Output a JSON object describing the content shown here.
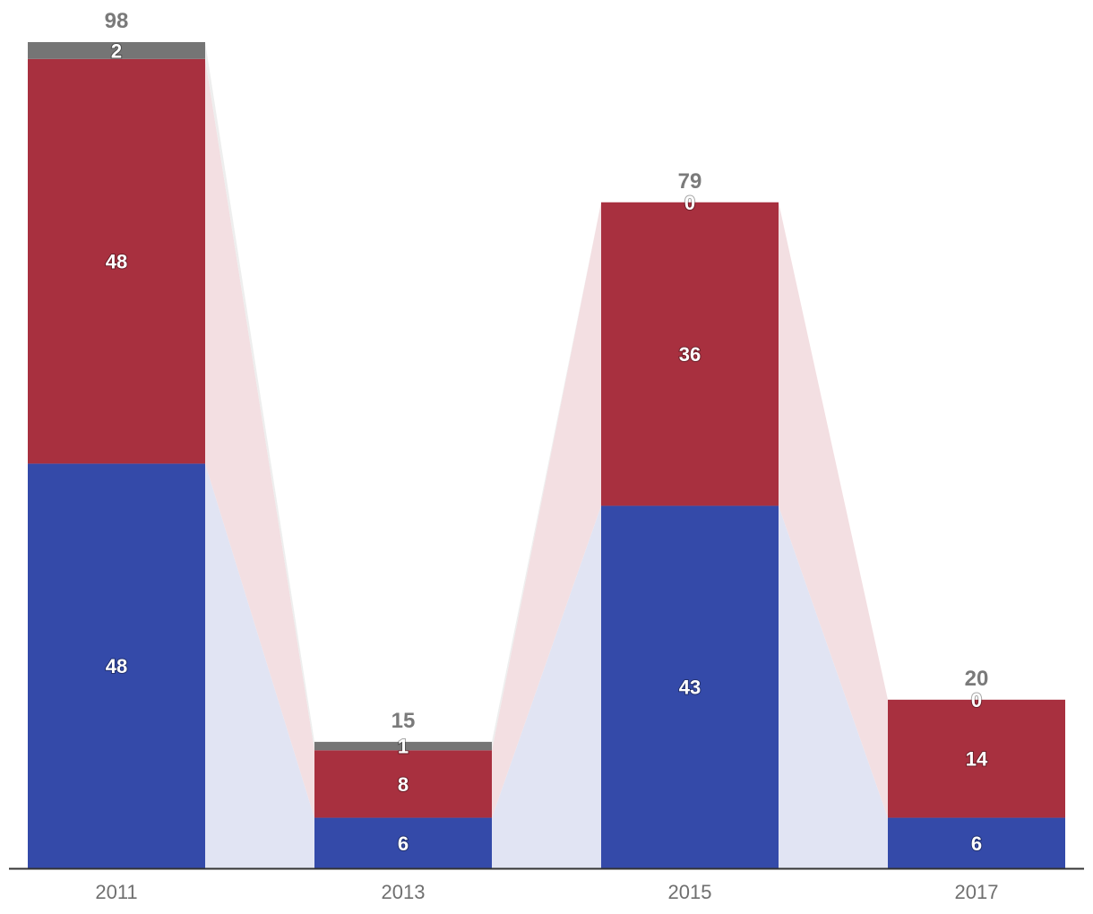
{
  "chart_data": {
    "type": "bar",
    "stacked": true,
    "categories": [
      "2011",
      "2013",
      "2015",
      "2017"
    ],
    "series": [
      {
        "values": [
          48,
          6,
          43,
          6
        ],
        "color": "#344aa9"
      },
      {
        "values": [
          48,
          8,
          36,
          14
        ],
        "color": "#a8303f"
      },
      {
        "values": [
          2,
          1,
          0,
          0
        ],
        "color": "#757575"
      }
    ],
    "totals": [
      98,
      15,
      79,
      20
    ],
    "connector_colors": [
      "#e1e4f3",
      "#f3dfe2",
      "#eeeeee"
    ],
    "ylim": [
      0,
      98
    ],
    "grid": false,
    "legend": "none",
    "xlabel": "",
    "ylabel": ""
  }
}
